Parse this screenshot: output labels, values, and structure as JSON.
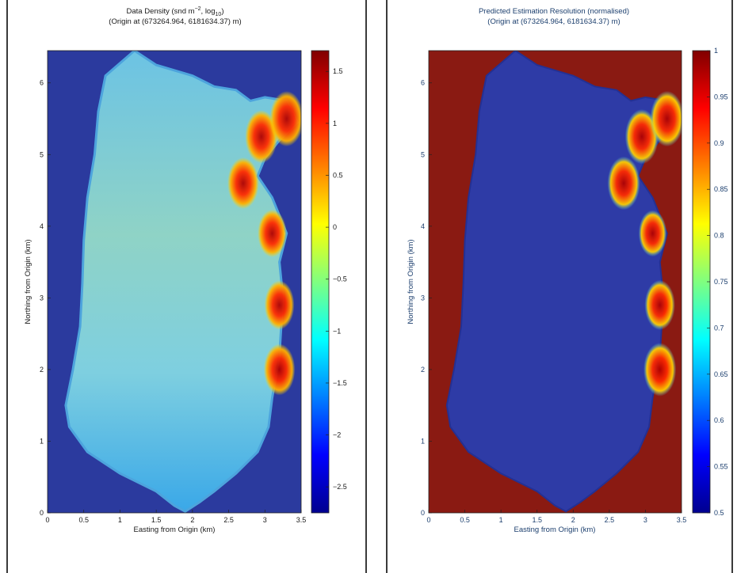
{
  "figures": [
    {
      "id": "data-density",
      "title_line1": "Data Density (snd m",
      "title_sup": "−2",
      "title_mid": ", log",
      "title_sub": "10",
      "title_end": ")",
      "title_line2": "(Origin at (673264.964, 6181634.37) m)",
      "xlabel": "Easting from Origin (km)",
      "ylabel": "Northing from Origin (km)",
      "x_ticks": [
        "0",
        "0.5",
        "1",
        "1.5",
        "2",
        "2.5",
        "3",
        "3.5"
      ],
      "y_ticks": [
        "0",
        "1",
        "2",
        "3",
        "4",
        "5",
        "6"
      ],
      "colorbar_ticks": [
        "1.5",
        "1",
        "0.5",
        "0",
        "−0.5",
        "−1",
        "−1.5",
        "−2",
        "−2.5"
      ],
      "text_color": "#1a1a1a"
    },
    {
      "id": "estimation-resolution",
      "title_line1": "Predicted Estimation Resolution (normalised)",
      "title_line2": "(Origin at (673264.964, 6181634.37) m)",
      "xlabel": "Easting from Origin (km)",
      "ylabel": "Northing from Origin (km)",
      "x_ticks": [
        "0",
        "0.5",
        "1",
        "1.5",
        "2",
        "2.5",
        "3",
        "3.5"
      ],
      "y_ticks": [
        "0",
        "1",
        "2",
        "3",
        "4",
        "5",
        "6"
      ],
      "colorbar_ticks": [
        "1",
        "0.95",
        "0.9",
        "0.85",
        "0.8",
        "0.75",
        "0.7",
        "0.65",
        "0.6",
        "0.55",
        "0.5"
      ],
      "text_color": "#1c3f6e"
    }
  ],
  "chart_data": [
    {
      "type": "heatmap",
      "title": "Data Density (snd m^-2, log10) (Origin at (673264.964, 6181634.37) m)",
      "xlabel": "Easting from Origin (km)",
      "ylabel": "Northing from Origin (km)",
      "xlim": [
        0,
        3.5
      ],
      "ylim": [
        0,
        6.45
      ],
      "clim": [
        -2.75,
        1.7
      ],
      "colormap": "jet",
      "background_value": -2.75,
      "survey_outline": [
        [
          1.9,
          0.02
        ],
        [
          2.1,
          0.15
        ],
        [
          2.3,
          0.3
        ],
        [
          2.6,
          0.55
        ],
        [
          2.9,
          0.85
        ],
        [
          3.05,
          1.2
        ],
        [
          3.1,
          1.6
        ],
        [
          3.2,
          2.2
        ],
        [
          3.25,
          3.0
        ],
        [
          3.2,
          3.5
        ],
        [
          3.3,
          3.9
        ],
        [
          3.1,
          4.4
        ],
        [
          2.9,
          4.7
        ],
        [
          3.0,
          4.95
        ],
        [
          3.2,
          5.2
        ],
        [
          3.45,
          5.45
        ],
        [
          3.3,
          5.75
        ],
        [
          3.0,
          5.8
        ],
        [
          2.8,
          5.75
        ],
        [
          2.6,
          5.9
        ],
        [
          2.3,
          5.95
        ],
        [
          2.0,
          6.1
        ],
        [
          1.5,
          6.25
        ],
        [
          1.2,
          6.45
        ],
        [
          0.8,
          6.1
        ],
        [
          0.7,
          5.6
        ],
        [
          0.65,
          5.0
        ],
        [
          0.55,
          4.4
        ],
        [
          0.5,
          3.8
        ],
        [
          0.48,
          3.2
        ],
        [
          0.45,
          2.6
        ],
        [
          0.35,
          2.0
        ],
        [
          0.25,
          1.5
        ],
        [
          0.3,
          1.2
        ],
        [
          0.55,
          0.85
        ],
        [
          1.0,
          0.55
        ],
        [
          1.5,
          0.3
        ],
        [
          1.75,
          0.1
        ]
      ],
      "interior_value": -1.0,
      "high_density_zones": [
        {
          "x": 2.95,
          "y": 5.25,
          "value": 1.2
        },
        {
          "x": 2.7,
          "y": 4.6,
          "value": 1.0
        },
        {
          "x": 3.1,
          "y": 3.9,
          "value": 0.5
        },
        {
          "x": 3.2,
          "y": 2.9,
          "value": 0.7
        },
        {
          "x": 3.2,
          "y": 2.0,
          "value": 1.0
        },
        {
          "x": 3.3,
          "y": 5.5,
          "value": 1.5
        }
      ],
      "colorbar_ticks": [
        1.5,
        1,
        0.5,
        0,
        -0.5,
        -1,
        -1.5,
        -2,
        -2.5
      ]
    },
    {
      "type": "heatmap",
      "title": "Predicted Estimation Resolution (normalised) (Origin at (673264.964, 6181634.37) m)",
      "xlabel": "Easting from Origin (km)",
      "ylabel": "Northing from Origin (km)",
      "xlim": [
        0,
        3.5
      ],
      "ylim": [
        0,
        6.45
      ],
      "clim": [
        0.5,
        1.0
      ],
      "colormap": "jet",
      "background_value": 1.0,
      "survey_outline": [
        [
          1.9,
          0.02
        ],
        [
          2.1,
          0.15
        ],
        [
          2.3,
          0.3
        ],
        [
          2.6,
          0.55
        ],
        [
          2.9,
          0.85
        ],
        [
          3.05,
          1.2
        ],
        [
          3.1,
          1.6
        ],
        [
          3.2,
          2.2
        ],
        [
          3.25,
          3.0
        ],
        [
          3.2,
          3.5
        ],
        [
          3.3,
          3.9
        ],
        [
          3.1,
          4.4
        ],
        [
          2.9,
          4.7
        ],
        [
          3.0,
          4.95
        ],
        [
          3.2,
          5.2
        ],
        [
          3.45,
          5.45
        ],
        [
          3.3,
          5.75
        ],
        [
          3.0,
          5.8
        ],
        [
          2.8,
          5.75
        ],
        [
          2.6,
          5.9
        ],
        [
          2.3,
          5.95
        ],
        [
          2.0,
          6.1
        ],
        [
          1.5,
          6.25
        ],
        [
          1.2,
          6.45
        ],
        [
          0.8,
          6.1
        ],
        [
          0.7,
          5.6
        ],
        [
          0.65,
          5.0
        ],
        [
          0.55,
          4.4
        ],
        [
          0.5,
          3.8
        ],
        [
          0.48,
          3.2
        ],
        [
          0.45,
          2.6
        ],
        [
          0.35,
          2.0
        ],
        [
          0.25,
          1.5
        ],
        [
          0.3,
          1.2
        ],
        [
          0.55,
          0.85
        ],
        [
          1.0,
          0.55
        ],
        [
          1.5,
          0.3
        ],
        [
          1.75,
          0.1
        ]
      ],
      "interior_value": 0.5,
      "high_resolution_zones": [
        {
          "x": 2.95,
          "y": 5.25,
          "value": 0.97
        },
        {
          "x": 2.7,
          "y": 4.6,
          "value": 0.95
        },
        {
          "x": 3.1,
          "y": 3.9,
          "value": 0.85
        },
        {
          "x": 3.2,
          "y": 2.9,
          "value": 0.9
        },
        {
          "x": 3.2,
          "y": 2.0,
          "value": 0.95
        },
        {
          "x": 3.3,
          "y": 5.5,
          "value": 0.98
        }
      ],
      "colorbar_ticks": [
        1,
        0.95,
        0.9,
        0.85,
        0.8,
        0.75,
        0.7,
        0.65,
        0.6,
        0.55,
        0.5
      ]
    }
  ]
}
